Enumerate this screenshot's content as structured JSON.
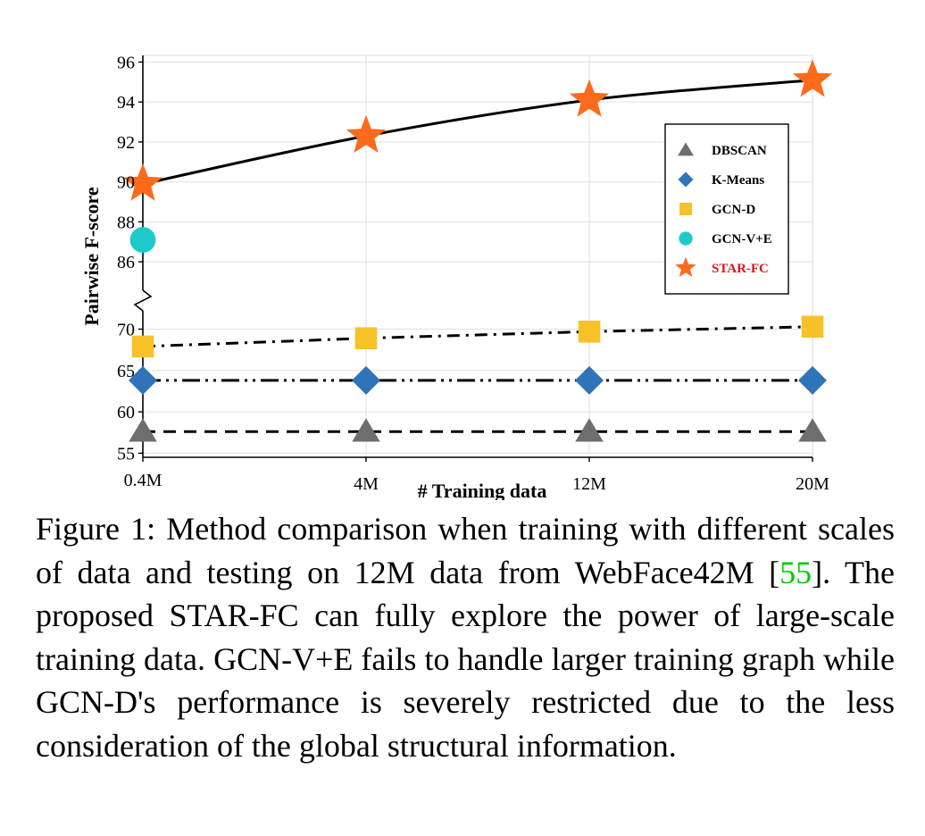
{
  "chart_data": {
    "type": "line",
    "xlabel": "# Training data",
    "ylabel": "Pairwise F-score",
    "categories": [
      "0.4M",
      "4M",
      "12M",
      "20M"
    ],
    "y_ticks_upper": [
      86,
      88,
      90,
      92,
      94,
      96
    ],
    "y_ticks_lower": [
      55,
      60,
      65,
      70
    ],
    "ylim_upper": [
      84.8,
      96.2
    ],
    "ylim_lower": [
      54.5,
      72
    ],
    "broken_axis": true,
    "grid": true,
    "legend_position": "top-right",
    "series": [
      {
        "name": "DBSCAN",
        "values": [
          57.6,
          57.6,
          57.6,
          57.6
        ],
        "color": "#706c70",
        "marker": "triangle",
        "line": "dashed",
        "segment": "lower"
      },
      {
        "name": "K-Means",
        "values": [
          63.8,
          63.8,
          63.8,
          63.8
        ],
        "color": "#2f73b8",
        "marker": "diamond",
        "line": "dash-dot-dot",
        "segment": "lower"
      },
      {
        "name": "GCN-D",
        "values": [
          67.9,
          68.9,
          69.7,
          70.3
        ],
        "color": "#f7c129",
        "marker": "square",
        "line": "dash-dot",
        "segment": "lower"
      },
      {
        "name": "GCN-V+E",
        "values": [
          87.1,
          null,
          null,
          null
        ],
        "color": "#1ec9cb",
        "marker": "circle",
        "line": "none",
        "segment": "upper"
      },
      {
        "name": "STAR-FC",
        "values": [
          89.9,
          92.3,
          94.1,
          95.1
        ],
        "color": "#fc6a1c",
        "marker": "star",
        "line": "solid",
        "segment": "upper",
        "legend_text_color": "#e0131b"
      }
    ]
  },
  "caption": {
    "text_before_ref": "Figure 1: Method comparison when training with different scales of data and testing on 12M data from WebFace42M [",
    "ref": "55",
    "text_after_ref": "]. The proposed STAR-FC can fully explore the power of large-scale training data. GCN-V+E fails to handle larger training graph while GCN-D's performance is severely restricted due to the less consideration of the global structural information."
  }
}
